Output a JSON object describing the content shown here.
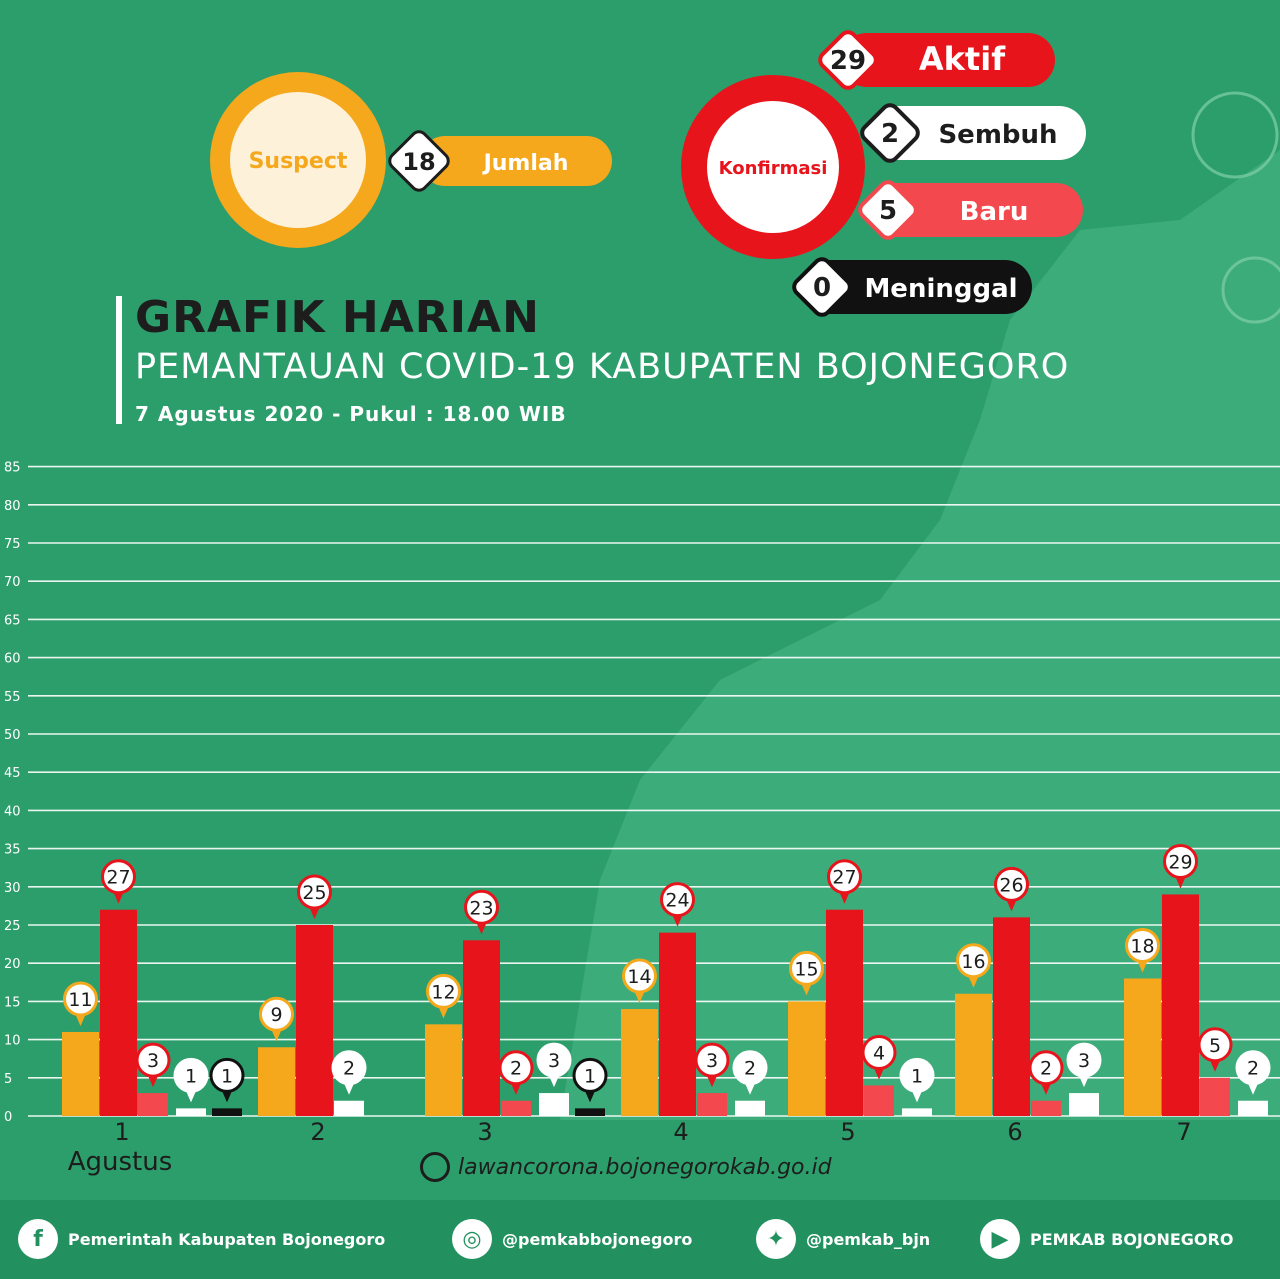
{
  "header": {
    "title": "GRAFIK HARIAN",
    "subtitle": "PEMANTAUAN COVID-19 KABUPATEN BOJONEGORO",
    "date": "7 Agustus 2020 - Pukul : 18.00 WIB"
  },
  "suspect": {
    "label": "Suspect",
    "value": "18",
    "sub": "Jumlah"
  },
  "konfirmasi": {
    "label": "Konfirmasi",
    "items": [
      {
        "value": "29",
        "label": "Aktif"
      },
      {
        "value": "2",
        "label": "Sembuh"
      },
      {
        "value": "5",
        "label": "Baru"
      },
      {
        "value": "0",
        "label": "Meninggal"
      }
    ]
  },
  "website": "lawancorona.bojonegorokab.go.id",
  "social": [
    {
      "icon": "facebook-icon",
      "glyph": "f",
      "label": "Pemerintah Kabupaten Bojonegoro"
    },
    {
      "icon": "instagram-icon",
      "glyph": "◎",
      "label": "@pemkabbojonegoro"
    },
    {
      "icon": "twitter-icon",
      "glyph": "✦",
      "label": "@pemkab_bjn"
    },
    {
      "icon": "youtube-icon",
      "glyph": "▶",
      "label": "PEMKAB BOJONEGORO"
    }
  ],
  "colors": {
    "background": "#2c9e6b",
    "suspect": "#f5a81c",
    "aktif": "#e8141c",
    "baru": "#f2484e",
    "sembuh": "#ffffff",
    "meninggal": "#111111"
  },
  "chart_data": {
    "type": "bar",
    "categories": [
      "1",
      "2",
      "3",
      "4",
      "5",
      "6",
      "7"
    ],
    "category_note": "Agustus",
    "ylim": [
      0,
      85
    ],
    "yticks": [
      0,
      5,
      10,
      15,
      20,
      25,
      30,
      35,
      40,
      45,
      50,
      55,
      60,
      65,
      70,
      75,
      80,
      85
    ],
    "series": [
      {
        "key": "suspect",
        "values": [
          11,
          9,
          12,
          14,
          15,
          16,
          18
        ],
        "color": "#f5a81c"
      },
      {
        "key": "aktif",
        "values": [
          27,
          25,
          23,
          24,
          27,
          26,
          29
        ],
        "color": "#e8141c"
      },
      {
        "key": "baru",
        "values": [
          3,
          null,
          2,
          3,
          4,
          2,
          5
        ],
        "color": "#f2484e"
      },
      {
        "key": "sembuh",
        "values": [
          1,
          2,
          3,
          2,
          1,
          3,
          2
        ],
        "color": "#ffffff"
      },
      {
        "key": "meninggal",
        "values": [
          1,
          null,
          1,
          null,
          null,
          null,
          null
        ],
        "color": "#111111"
      }
    ]
  }
}
